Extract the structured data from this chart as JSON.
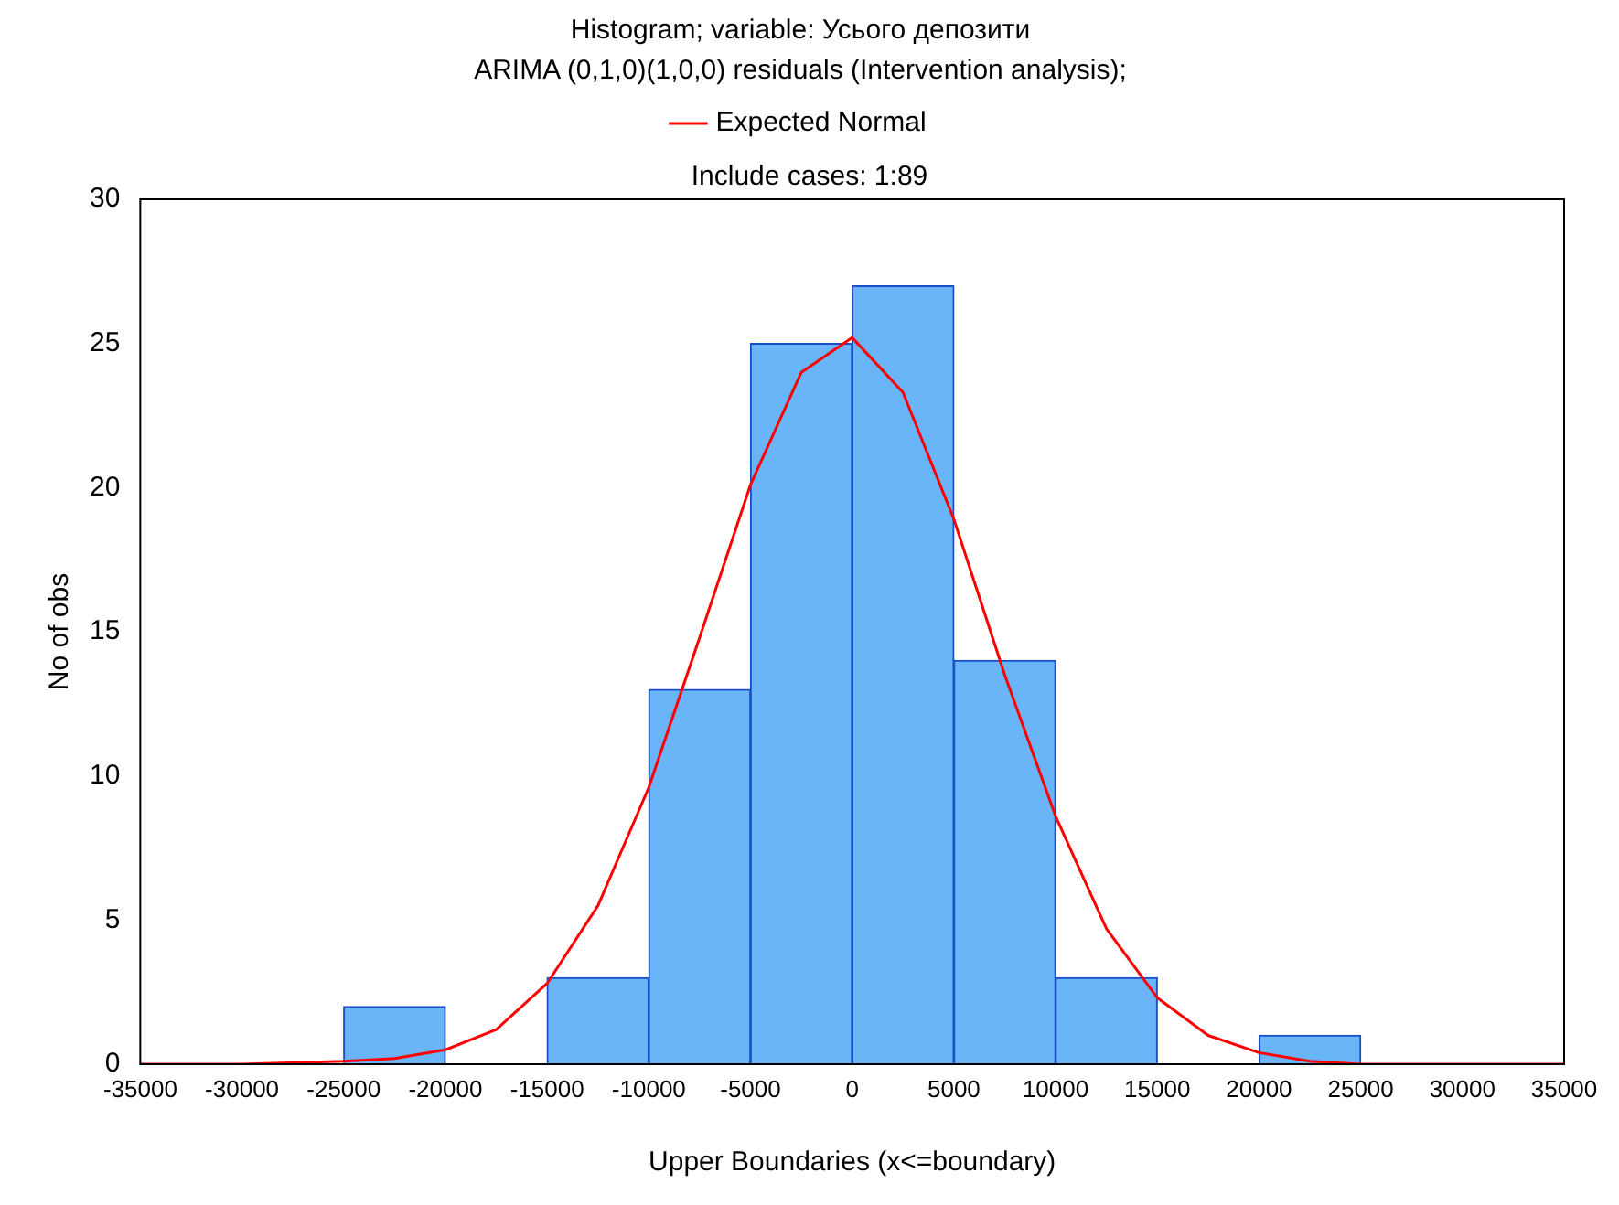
{
  "chart_data": {
    "type": "histogram",
    "title": "Histogram; variable: Усього депозити",
    "subtitle": "ARIMA (0,1,0)(1,0,0) residuals (Intervention analysis);",
    "annotations": [
      "Include cases: 1:89"
    ],
    "xlabel": "Upper Boundaries (x<=boundary)",
    "ylabel": "No of obs",
    "bins": [
      -35000,
      -30000,
      -25000,
      -20000,
      -15000,
      -10000,
      -5000,
      0,
      5000,
      10000,
      15000,
      20000,
      25000,
      30000,
      35000
    ],
    "values": [
      0,
      0,
      2,
      0,
      3,
      13,
      25,
      27,
      14,
      3,
      0,
      1,
      0,
      0
    ],
    "color": "#6ab4f8",
    "series": [
      {
        "type": "line",
        "name": "Expected Normal",
        "color": "#ff0000",
        "x": [
          -35000,
          -30000,
          -25000,
          -22500,
          -20000,
          -17500,
          -15000,
          -12500,
          -10000,
          -7500,
          -5000,
          -2500,
          0,
          2500,
          5000,
          7500,
          10000,
          12500,
          15000,
          17500,
          20000,
          22500,
          25000,
          30000,
          35000
        ],
        "values": [
          0,
          0,
          0.1,
          0.2,
          0.5,
          1.2,
          2.8,
          5.5,
          9.6,
          14.8,
          20.1,
          24,
          25.2,
          23.3,
          18.9,
          13.5,
          8.6,
          4.7,
          2.3,
          1,
          0.4,
          0.1,
          0,
          0,
          0
        ]
      }
    ],
    "xlim": [
      -35000,
      35000
    ],
    "xticks": [
      -35000,
      -30000,
      -25000,
      -20000,
      -15000,
      -10000,
      -5000,
      0,
      5000,
      10000,
      15000,
      20000,
      25000,
      30000,
      35000
    ],
    "ylim": [
      0,
      30
    ],
    "yticks": [
      0,
      5,
      10,
      15,
      20,
      25,
      30
    ],
    "grid": false,
    "legend": "top"
  }
}
